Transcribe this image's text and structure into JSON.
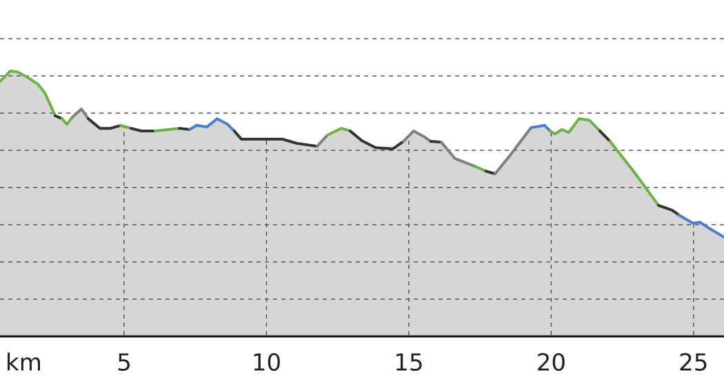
{
  "chart_data": {
    "type": "line",
    "x_label": "km",
    "xlim": [
      0.64,
      26.07
    ],
    "ylim": [
      0,
      9.04
    ],
    "xticks": [
      5,
      10,
      15,
      20,
      25
    ],
    "ygrid": [
      1,
      2,
      3,
      4,
      5,
      6,
      7,
      8
    ],
    "area_color": "#d6d6d6",
    "segments": [
      {
        "color": "#6ab344",
        "x": [
          0.64,
          1.0,
          1.25,
          1.61,
          1.97,
          2.22,
          2.58
        ],
        "y": [
          6.85,
          7.13,
          7.11,
          6.96,
          6.78,
          6.54,
          5.93
        ]
      },
      {
        "color": "#333333",
        "x": [
          2.58,
          2.82
        ],
        "y": [
          5.93,
          5.85
        ]
      },
      {
        "color": "#6ab344",
        "x": [
          2.82,
          2.99,
          3.18
        ],
        "y": [
          5.85,
          5.7,
          5.89
        ]
      },
      {
        "color": "#808080",
        "x": [
          3.18,
          3.5,
          3.74
        ],
        "y": [
          5.89,
          6.11,
          5.85
        ]
      },
      {
        "color": "#333333",
        "x": [
          3.74,
          4.15,
          4.52,
          4.88
        ],
        "y": [
          5.85,
          5.59,
          5.59,
          5.67
        ]
      },
      {
        "color": "#6ab344",
        "x": [
          4.88,
          5.24
        ],
        "y": [
          5.67,
          5.59
        ]
      },
      {
        "color": "#333333",
        "x": [
          5.24,
          5.61,
          6.09
        ],
        "y": [
          5.59,
          5.52,
          5.52
        ]
      },
      {
        "color": "#6ab344",
        "x": [
          6.09,
          6.94
        ],
        "y": [
          5.52,
          5.59
        ]
      },
      {
        "color": "#333333",
        "x": [
          6.94,
          7.3
        ],
        "y": [
          5.59,
          5.56
        ]
      },
      {
        "color": "#4a7fc9",
        "x": [
          7.3,
          7.54,
          7.91,
          8.27,
          8.63,
          8.87
        ],
        "y": [
          5.56,
          5.67,
          5.63,
          5.85,
          5.7,
          5.52
        ]
      },
      {
        "color": "#333333",
        "x": [
          8.87,
          9.12,
          9.96,
          10.57,
          11.05,
          11.78
        ],
        "y": [
          5.52,
          5.3,
          5.3,
          5.3,
          5.19,
          5.11
        ]
      },
      {
        "color": "#808080",
        "x": [
          11.78,
          12.14
        ],
        "y": [
          5.11,
          5.41
        ]
      },
      {
        "color": "#6ab344",
        "x": [
          12.14,
          12.63,
          12.94
        ],
        "y": [
          5.41,
          5.59,
          5.52
        ]
      },
      {
        "color": "#333333",
        "x": [
          12.94,
          13.35,
          13.84,
          14.44,
          14.81
        ],
        "y": [
          5.52,
          5.26,
          5.07,
          5.04,
          5.24
        ]
      },
      {
        "color": "#808080",
        "x": [
          14.81,
          15.17,
          15.53,
          15.77
        ],
        "y": [
          5.24,
          5.52,
          5.37,
          5.24
        ]
      },
      {
        "color": "#333333",
        "x": [
          15.77,
          16.14
        ],
        "y": [
          5.24,
          5.22
        ]
      },
      {
        "color": "#808080",
        "x": [
          16.14,
          16.62,
          17.35
        ],
        "y": [
          5.22,
          4.78,
          4.56
        ]
      },
      {
        "color": "#6ab344",
        "x": [
          17.35,
          17.71
        ],
        "y": [
          4.56,
          4.44
        ]
      },
      {
        "color": "#333333",
        "x": [
          17.71,
          18.03
        ],
        "y": [
          4.44,
          4.37
        ]
      },
      {
        "color": "#808080",
        "x": [
          18.03,
          18.56,
          19.29
        ],
        "y": [
          4.37,
          4.87,
          5.61
        ]
      },
      {
        "color": "#4a7fc9",
        "x": [
          19.29,
          19.77,
          19.96
        ],
        "y": [
          5.61,
          5.67,
          5.52
        ]
      },
      {
        "color": "#6ab344",
        "x": [
          19.96,
          20.13,
          20.38,
          20.62,
          20.98,
          21.34,
          21.71
        ],
        "y": [
          5.52,
          5.44,
          5.56,
          5.48,
          5.85,
          5.81,
          5.52
        ]
      },
      {
        "color": "#333333",
        "x": [
          21.71,
          22.07
        ],
        "y": [
          5.52,
          5.24
        ]
      },
      {
        "color": "#6ab344",
        "x": [
          22.07,
          22.92,
          23.77
        ],
        "y": [
          5.24,
          4.41,
          3.52
        ]
      },
      {
        "color": "#333333",
        "x": [
          23.77,
          24.25,
          24.49
        ],
        "y": [
          3.52,
          3.39,
          3.26
        ]
      },
      {
        "color": "#4a7fc9",
        "x": [
          24.49,
          24.98,
          25.22,
          25.58,
          26.07
        ],
        "y": [
          3.26,
          3.04,
          3.07,
          2.89,
          2.67
        ]
      }
    ]
  }
}
